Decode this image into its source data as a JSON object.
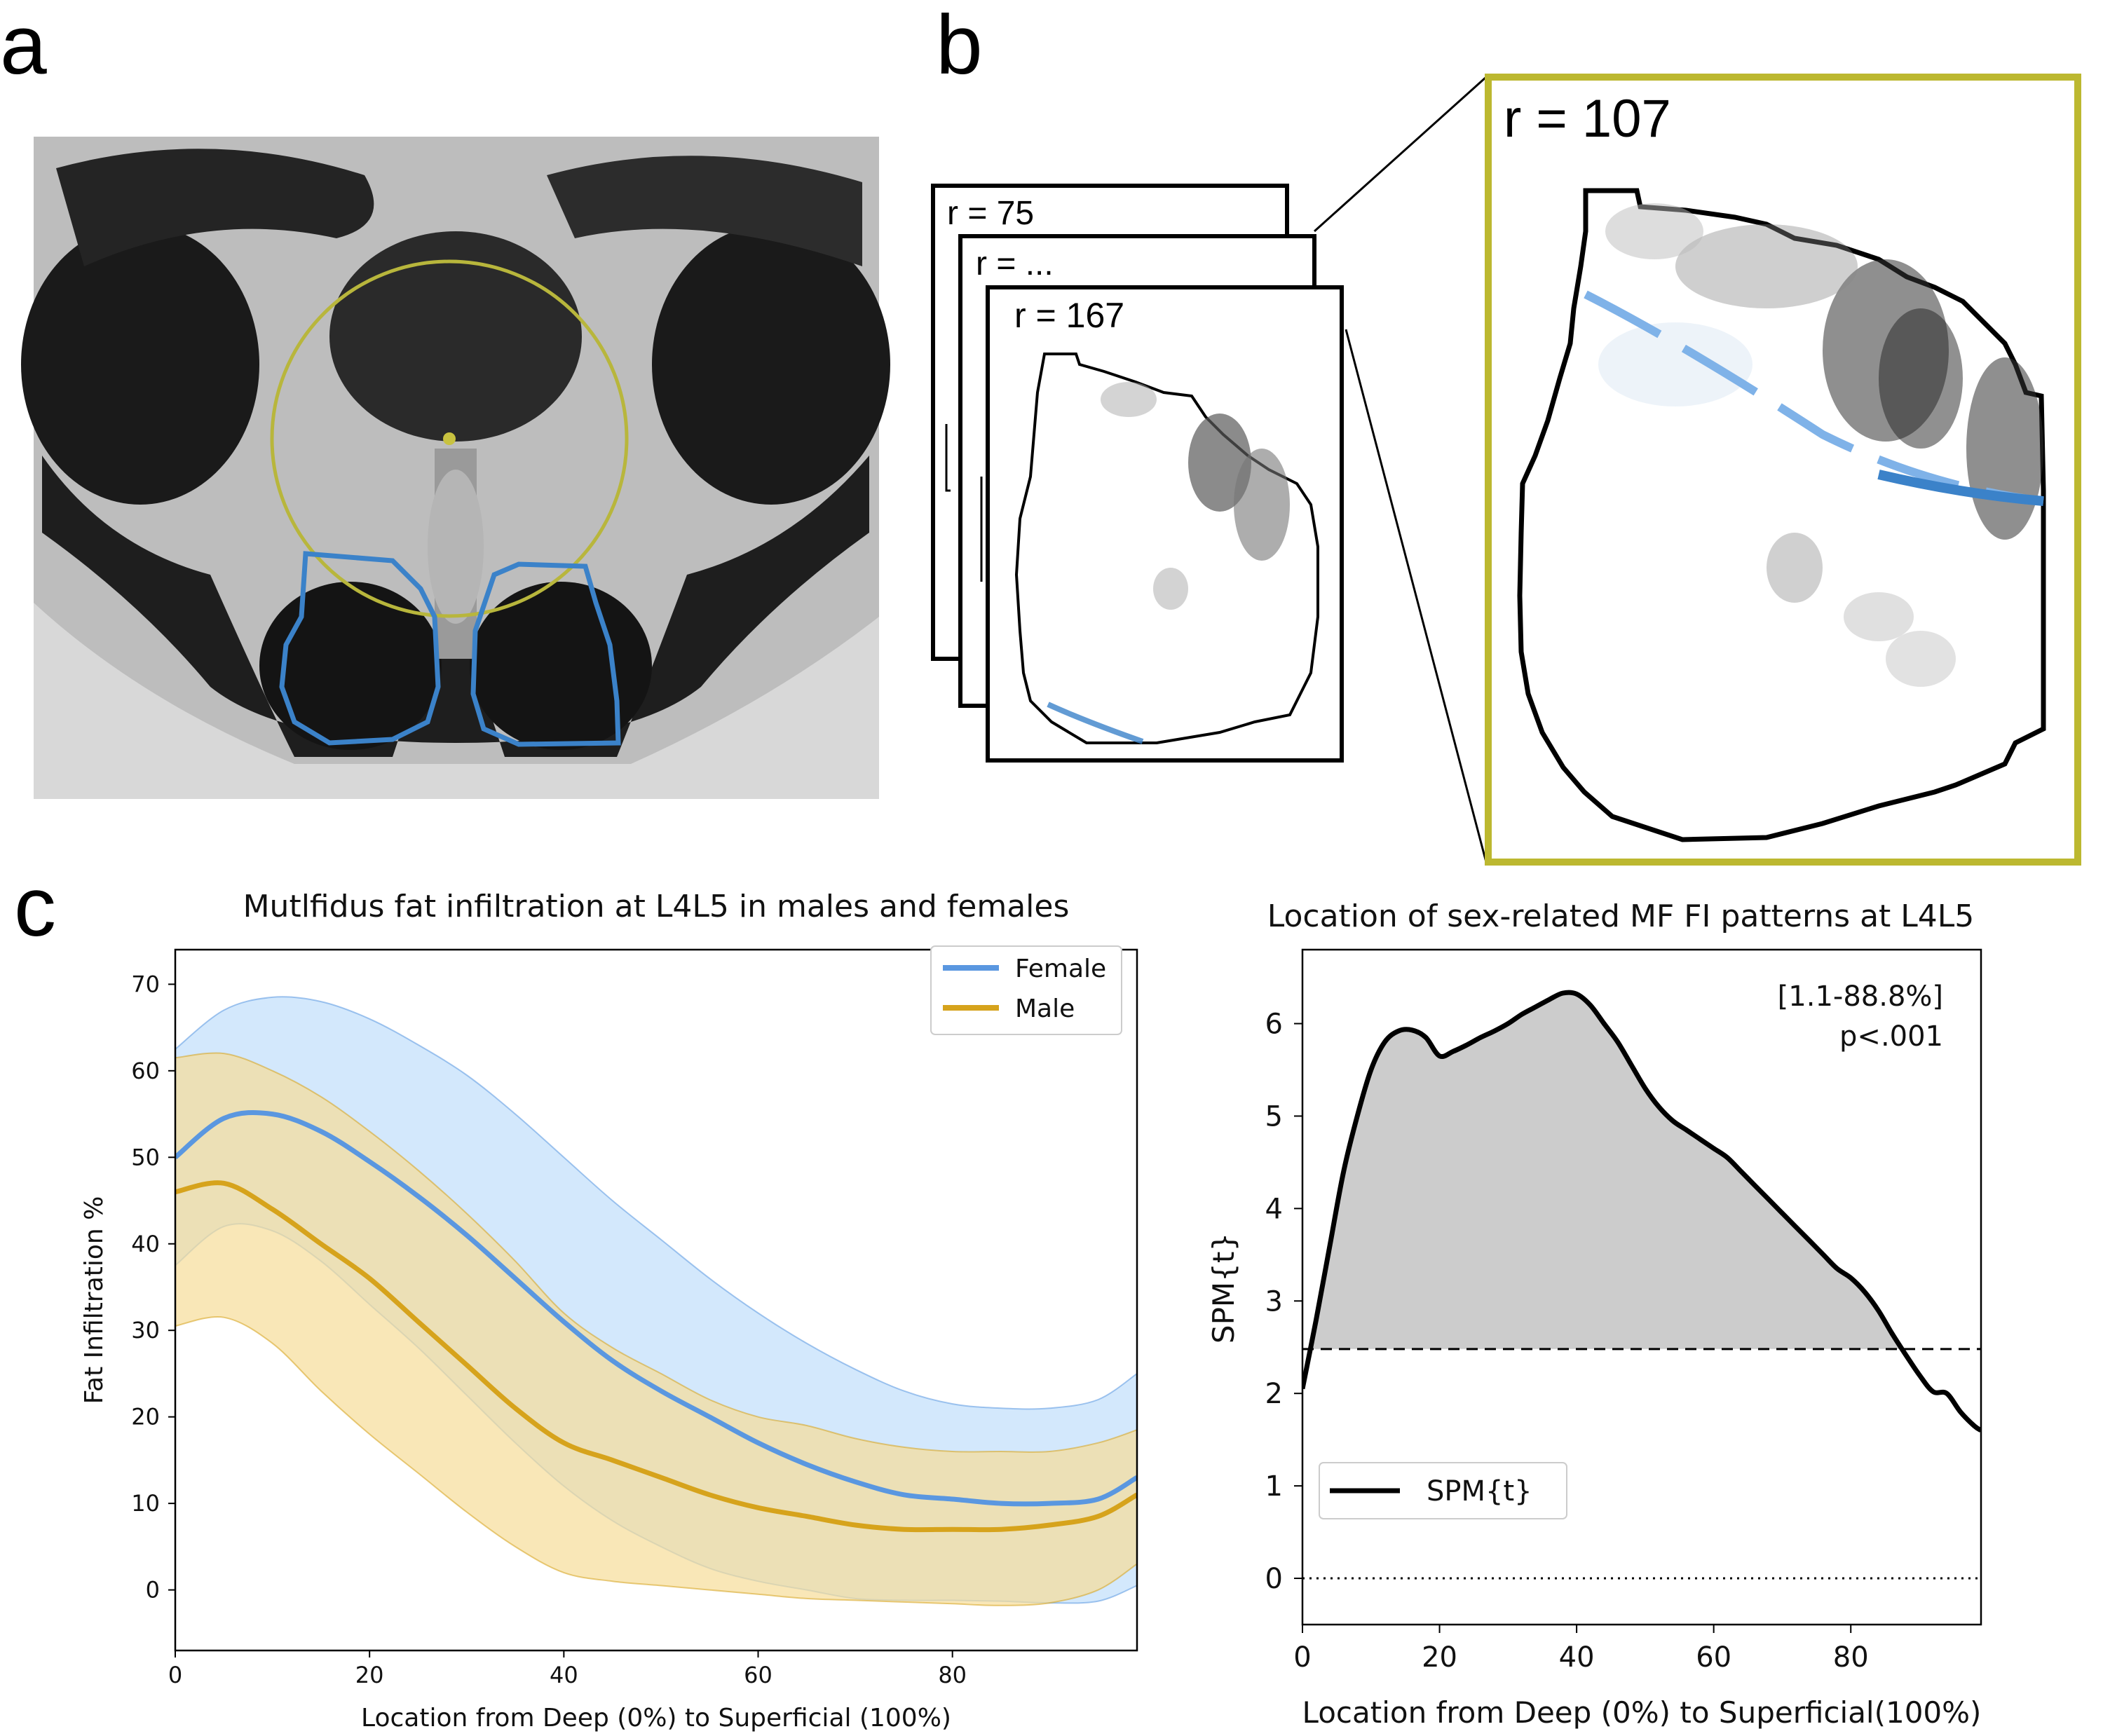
{
  "panels": {
    "a": {
      "letter": "a"
    },
    "b": {
      "letter": "b",
      "stack_labels": [
        "r = 75",
        "r = ...",
        "r = 167"
      ],
      "zoom_label": "r = 107"
    },
    "c": {
      "letter": "c"
    }
  },
  "colors": {
    "female": "#5a97e0",
    "female_band": "#c4e0fb",
    "male": "#d6a31c",
    "male_band": "#f6dd98",
    "roi_outline": "#3b82c9",
    "circle": "#b8b63c",
    "zoom_frame": "#bcb830",
    "spm_fill": "#cccccc"
  },
  "chart_data": [
    {
      "type": "line",
      "title": "Mutlfidus fat infiltration at L4L5 in males and females",
      "xlabel": "Location from Deep (0%) to Superficial (100%)",
      "ylabel": "Fat Infiltration %",
      "xlim": [
        0,
        99
      ],
      "ylim": [
        -7,
        74
      ],
      "xticks": [
        0,
        20,
        40,
        60,
        80
      ],
      "yticks": [
        0,
        10,
        20,
        30,
        40,
        50,
        60,
        70
      ],
      "legend": [
        "Female",
        "Male"
      ],
      "legend_position": "top-right",
      "x": [
        0,
        5,
        10,
        15,
        20,
        25,
        30,
        35,
        40,
        45,
        50,
        55,
        60,
        65,
        70,
        75,
        80,
        85,
        90,
        95,
        99
      ],
      "series": [
        {
          "name": "Female",
          "mean": [
            50,
            54.5,
            55,
            53,
            49.5,
            45.5,
            41,
            36,
            31,
            26.5,
            23,
            20,
            17,
            14.5,
            12.5,
            11,
            10.5,
            10,
            10,
            10.5,
            13
          ],
          "upper": [
            62.5,
            67,
            68.5,
            68,
            66,
            63,
            59.5,
            55,
            50,
            45,
            40.5,
            36,
            32,
            28.5,
            25.5,
            23,
            21.5,
            21,
            21,
            22,
            25
          ],
          "lower": [
            37.5,
            42,
            41.5,
            38,
            33,
            28,
            22.5,
            17,
            12,
            8,
            5,
            2.5,
            1,
            0,
            -1,
            -1.2,
            -1.2,
            -1.3,
            -1.5,
            -1.3,
            0.5
          ]
        },
        {
          "name": "Male",
          "mean": [
            46,
            47,
            44,
            40,
            36,
            31,
            26,
            21,
            17,
            15,
            13,
            11,
            9.5,
            8.5,
            7.5,
            7,
            7,
            7,
            7.5,
            8.5,
            11
          ],
          "upper": [
            61.5,
            62,
            60,
            57,
            53,
            48.5,
            43.5,
            38,
            32,
            28,
            25,
            22,
            20,
            19,
            17.5,
            16.5,
            16,
            16,
            16,
            17,
            18.5
          ],
          "lower": [
            30.5,
            31.5,
            28.5,
            23,
            18,
            13.5,
            9,
            5,
            2,
            1,
            0.5,
            0,
            -0.5,
            -1,
            -1.2,
            -1.4,
            -1.6,
            -1.8,
            -1.5,
            0,
            3
          ]
        }
      ]
    },
    {
      "type": "area",
      "title": "Location of sex-related MF FI patterns at L4L5",
      "xlabel": "Location from Deep (0%) to Superficial(100%)",
      "ylabel": "SPM{t}",
      "xlim": [
        0,
        99
      ],
      "ylim": [
        -0.5,
        6.8
      ],
      "xticks": [
        0,
        20,
        40,
        60,
        80
      ],
      "yticks": [
        0,
        1,
        2,
        3,
        4,
        5,
        6
      ],
      "threshold": 2.48,
      "annotation": [
        "[1.1-88.8%]",
        "p<.001"
      ],
      "legend": [
        "SPM{t}"
      ],
      "legend_position": "lower-left",
      "series": [
        {
          "name": "SPM{t}",
          "x": [
            0,
            2,
            4,
            6,
            8,
            10,
            12,
            14,
            16,
            18,
            20,
            22,
            24,
            26,
            28,
            30,
            32,
            34,
            36,
            38,
            40,
            42,
            44,
            46,
            48,
            50,
            52,
            54,
            56,
            58,
            60,
            62,
            64,
            66,
            68,
            70,
            72,
            74,
            76,
            78,
            80,
            82,
            84,
            86,
            88,
            90,
            92,
            94,
            96,
            98,
            99
          ],
          "values": [
            2.05,
            2.8,
            3.6,
            4.4,
            5.0,
            5.5,
            5.8,
            5.92,
            5.93,
            5.85,
            5.65,
            5.7,
            5.77,
            5.85,
            5.92,
            6.0,
            6.1,
            6.18,
            6.26,
            6.33,
            6.32,
            6.2,
            6.0,
            5.8,
            5.55,
            5.3,
            5.1,
            4.95,
            4.85,
            4.75,
            4.65,
            4.55,
            4.4,
            4.25,
            4.1,
            3.95,
            3.8,
            3.65,
            3.5,
            3.35,
            3.25,
            3.1,
            2.9,
            2.65,
            2.42,
            2.2,
            2.02,
            2.0,
            1.8,
            1.65,
            1.6
          ]
        }
      ]
    }
  ]
}
